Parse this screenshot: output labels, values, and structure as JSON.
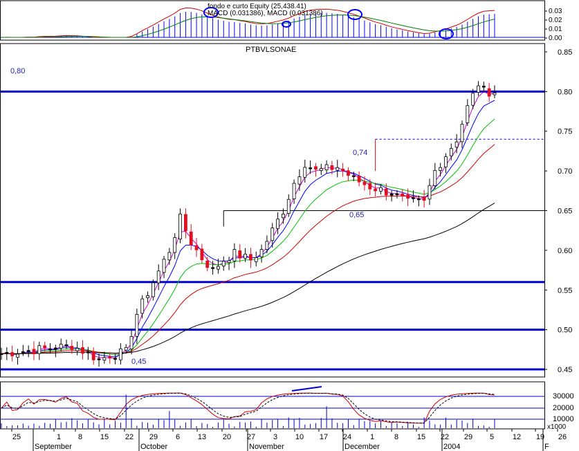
{
  "colors": {
    "candle_up": "#ffffff",
    "candle_down": "#e01020",
    "candle_neutral": "#000000",
    "support_line": "#0000d0",
    "ma_fast": "#d000d0",
    "ma_blue": "#0000ff",
    "ma_green": "#00c000",
    "ma_red": "#d00000",
    "ma_long": "#000000",
    "macd_bar": "#0000ff",
    "macd_line": "#d00000",
    "signal_line": "#008000",
    "annotation_circle": "#0000ff"
  },
  "panels": {
    "macd": {
      "legend": "fondo e curto Equity (25,438.41)",
      "legend2": "MACD (0.031386), MACD (0.031386)",
      "ticks": [
        "0.03",
        "0.02",
        "0.01",
        "0.00"
      ]
    },
    "price": {
      "title": "PTBVLSONAE",
      "level_label": "0,80",
      "ticks": [
        "0.85",
        "0.80",
        "0.75",
        "0.70",
        "0.65",
        "0.60",
        "0.55",
        "0.50",
        "0.45"
      ]
    },
    "oscillator": {
      "ticks": [
        "30000",
        "20000",
        "10000"
      ],
      "unit": "x1000"
    }
  },
  "annotations": {
    "label_074": "0,74",
    "label_065": "0,65",
    "label_045": "0,45"
  },
  "x_axis": {
    "day_labels": [
      "25",
      "1",
      "8",
      "15",
      "22",
      "29",
      "6",
      "13",
      "20",
      "27",
      "3",
      "10",
      "17",
      "24",
      "1",
      "8",
      "15",
      "22",
      "29",
      "5",
      "12",
      "19",
      "26"
    ],
    "month_labels": [
      "September",
      "October",
      "November",
      "December",
      "2004",
      "F"
    ]
  },
  "chart_data": {
    "type": "candlestick",
    "title": "PTBVLSONAE",
    "ylim": [
      0.44,
      0.86
    ],
    "horizontal_levels": [
      0.8,
      0.56,
      0.5,
      0.45
    ],
    "dashed_level": 0.74,
    "resistance_level": 0.65,
    "price_path": [
      [
        0,
        0.47
      ],
      [
        13,
        0.48
      ],
      [
        16,
        0.47
      ],
      [
        18,
        0.462
      ],
      [
        20,
        0.468
      ],
      [
        23,
        0.472
      ],
      [
        25,
        0.52
      ],
      [
        28,
        0.56
      ],
      [
        31,
        0.6
      ],
      [
        33,
        0.64
      ],
      [
        35,
        0.61
      ],
      [
        37,
        0.59
      ],
      [
        39,
        0.575
      ],
      [
        41,
        0.588
      ],
      [
        43,
        0.596
      ],
      [
        46,
        0.588
      ],
      [
        48,
        0.6
      ],
      [
        50,
        0.625
      ],
      [
        52,
        0.65
      ],
      [
        54,
        0.685
      ],
      [
        56,
        0.71
      ],
      [
        58,
        0.7
      ],
      [
        62,
        0.705
      ],
      [
        65,
        0.69
      ],
      [
        68,
        0.68
      ],
      [
        72,
        0.672
      ],
      [
        75,
        0.66
      ],
      [
        78,
        0.66
      ],
      [
        80,
        0.7
      ],
      [
        82,
        0.72
      ],
      [
        84,
        0.74
      ],
      [
        86,
        0.78
      ],
      [
        88,
        0.81
      ],
      [
        89,
        0.8
      ]
    ]
  }
}
